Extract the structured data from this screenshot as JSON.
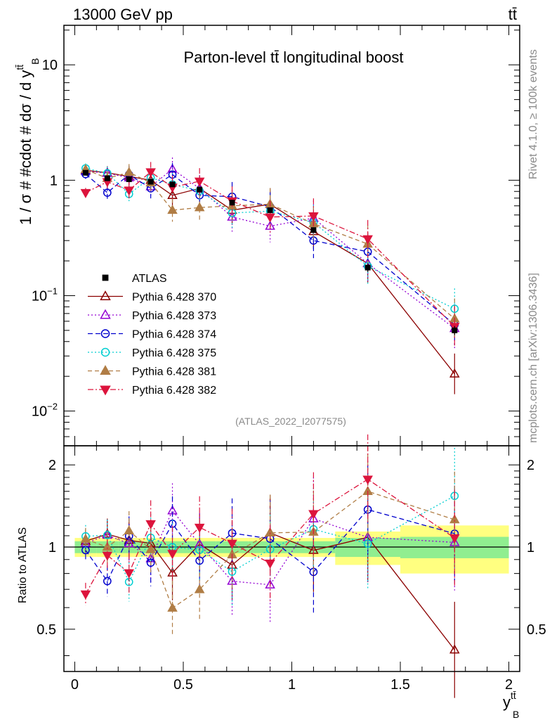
{
  "header": {
    "left": "13000 GeV pp",
    "right": "tt̄"
  },
  "side_labels": {
    "rivet": "Rivet 4.1.0, ≥ 100k events",
    "mcplots": "mcplots.cern.ch [arXiv:1306.3436]"
  },
  "chart_data": {
    "type": "line",
    "title": "Parton-level tt̄ longitudinal boost",
    "analysis_tag": "(ATLAS_2022_I2077575)",
    "ylabel": "1 / σ # #cdot # dσ / d y",
    "ylabel_sup": "tt̄",
    "ylabel_sub": "B",
    "xlabel": "y",
    "xlabel_sup": "tt̄",
    "xlabel_sub": "B",
    "ratio_ylabel": "Ratio to ATLAS",
    "xlim": [
      -0.05,
      2.05
    ],
    "ylim": [
      0.005,
      22
    ],
    "ratio_ylim": [
      0.35,
      2.35
    ],
    "x_ticks": [
      0,
      0.5,
      1,
      1.5,
      2
    ],
    "x_tick_labels": [
      "0",
      "0.5",
      "1",
      "1.5",
      "2"
    ],
    "y_ticks": [
      0.01,
      0.1,
      1,
      10
    ],
    "y_tick_labels": [
      {
        "base": "10",
        "exp": "−2"
      },
      {
        "base": "10",
        "exp": "−1"
      },
      {
        "base": "1",
        "exp": ""
      },
      {
        "base": "10",
        "exp": ""
      }
    ],
    "ratio_ticks": [
      0.5,
      1,
      2
    ],
    "ratio_tick_labels": [
      "0.5",
      "1",
      "2"
    ],
    "bin_edges": [
      0,
      0.1,
      0.2,
      0.3,
      0.4,
      0.5,
      0.65,
      0.8,
      1.0,
      1.2,
      1.5,
      2.0
    ],
    "x": [
      0.05,
      0.15,
      0.25,
      0.35,
      0.45,
      0.575,
      0.725,
      0.9,
      1.1,
      1.35,
      1.75
    ],
    "data": {
      "name": "ATLAS",
      "values": [
        1.16,
        1.04,
        1.02,
        0.97,
        0.92,
        0.83,
        0.64,
        0.55,
        0.37,
        0.175,
        0.05
      ],
      "band_inner": [
        0.05,
        0.05,
        0.05,
        0.05,
        0.05,
        0.05,
        0.05,
        0.05,
        0.05,
        0.08,
        0.09
      ],
      "band_outer": [
        0.08,
        0.08,
        0.08,
        0.08,
        0.08,
        0.08,
        0.08,
        0.08,
        0.08,
        0.14,
        0.2
      ]
    },
    "series": [
      {
        "name": "Pythia 6.428 370",
        "color": "#8b0000",
        "dash": "",
        "marker": "triangle-up-open",
        "values": [
          1.22,
          1.16,
          1.08,
          1.0,
          0.74,
          0.85,
          0.55,
          0.62,
          0.36,
          0.19,
          0.021
        ]
      },
      {
        "name": "Pythia 6.428 373",
        "color": "#9400d3",
        "dash": "2,3",
        "marker": "triangle-up-open",
        "values": [
          1.2,
          1.15,
          1.05,
          0.88,
          1.25,
          0.85,
          0.48,
          0.4,
          0.47,
          0.19,
          0.052
        ]
      },
      {
        "name": "Pythia 6.428 374",
        "color": "#0000cd",
        "dash": "7,4",
        "marker": "circle-open",
        "values": [
          1.13,
          0.78,
          1.12,
          0.85,
          1.12,
          0.74,
          0.72,
          0.59,
          0.3,
          0.24,
          0.056
        ]
      },
      {
        "name": "Pythia 6.428 375",
        "color": "#00ced1",
        "dash": "2,3",
        "marker": "circle-open",
        "values": [
          1.27,
          1.15,
          0.76,
          1.05,
          0.92,
          0.81,
          0.52,
          0.54,
          0.43,
          0.18,
          0.077
        ]
      },
      {
        "name": "Pythia 6.428 381",
        "color": "#b07d45",
        "dash": "6,4",
        "marker": "triangle-up-filled",
        "values": [
          1.24,
          1.04,
          1.17,
          0.95,
          0.55,
          0.58,
          0.6,
          0.62,
          0.42,
          0.28,
          0.063
        ]
      },
      {
        "name": "Pythia 6.428 382",
        "color": "#dc143c",
        "dash": "8,3,2,3",
        "marker": "triangle-down-filled",
        "values": [
          0.78,
          0.97,
          0.82,
          1.18,
          0.87,
          0.98,
          0.66,
          0.48,
          0.49,
          0.31,
          0.054
        ]
      }
    ]
  }
}
